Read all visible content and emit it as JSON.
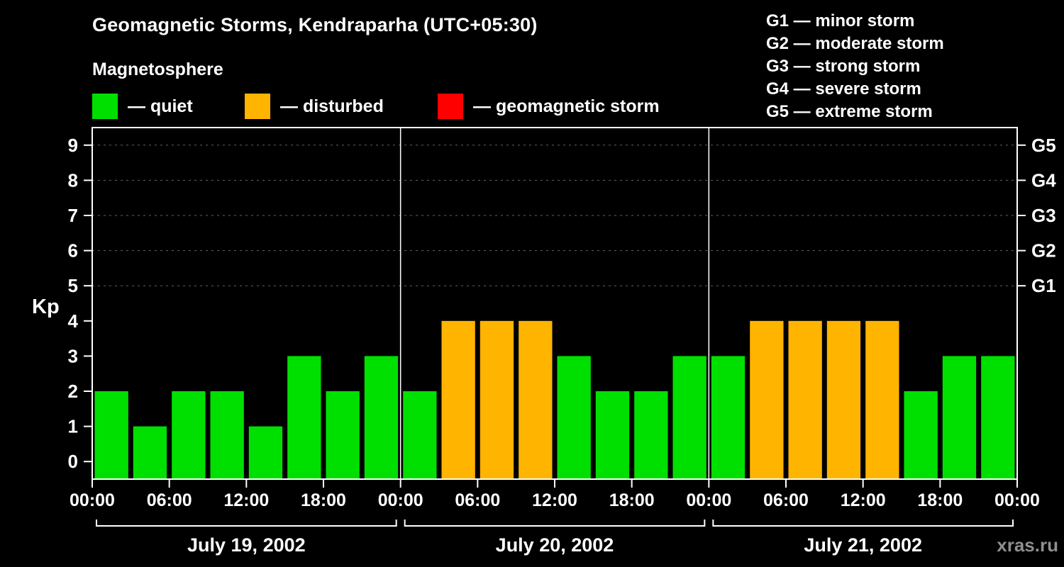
{
  "header": {
    "title": "Geomagnetic Storms, Kendraparha (UTC+05:30)",
    "subtitle": "Magnetosphere"
  },
  "legend": {
    "items": [
      {
        "key": "quiet",
        "label": "— quiet",
        "color": "#00e000"
      },
      {
        "key": "disturbed",
        "label": "— disturbed",
        "color": "#ffb400"
      },
      {
        "key": "storm",
        "label": "— geomagnetic storm",
        "color": "#ff0000"
      }
    ]
  },
  "g_legend": {
    "items": [
      "G1 — minor storm",
      "G2 — moderate storm",
      "G3 — strong storm",
      "G4 — severe storm",
      "G5 — extreme storm"
    ]
  },
  "chart_data": {
    "type": "bar",
    "title": "Geomagnetic Storms, Kendraparha (UTC+05:30)",
    "ylabel": "Kp",
    "ylim": [
      0,
      9
    ],
    "yticks": [
      0,
      1,
      2,
      3,
      4,
      5,
      6,
      7,
      8,
      9
    ],
    "gridlines_at": [
      5,
      6,
      7,
      8,
      9
    ],
    "right_axis": [
      {
        "value": 5,
        "label": "G1"
      },
      {
        "value": 6,
        "label": "G2"
      },
      {
        "value": 7,
        "label": "G3"
      },
      {
        "value": 8,
        "label": "G4"
      },
      {
        "value": 9,
        "label": "G5"
      }
    ],
    "x_tick_labels": [
      "00:00",
      "06:00",
      "12:00",
      "18:00",
      "00:00",
      "06:00",
      "12:00",
      "18:00",
      "00:00",
      "06:00",
      "12:00",
      "18:00",
      "00:00"
    ],
    "hours_per_bar": 3,
    "days": [
      {
        "date": "July 19, 2002",
        "values": [
          2,
          1,
          2,
          2,
          1,
          3,
          2,
          3
        ]
      },
      {
        "date": "July 20, 2002",
        "values": [
          2,
          4,
          4,
          4,
          3,
          2,
          2,
          3
        ]
      },
      {
        "date": "July 21, 2002",
        "values": [
          3,
          4,
          4,
          4,
          4,
          2,
          3,
          3
        ]
      }
    ],
    "colors": {
      "quiet": "#00e000",
      "disturbed": "#ffb400",
      "storm": "#ff0000"
    },
    "color_rules": {
      "disturbed_min_kp": 4,
      "storm_min_kp": 5
    },
    "grid_color": "#646464",
    "axis_color": "#ffffff"
  },
  "watermark": "xras.ru"
}
